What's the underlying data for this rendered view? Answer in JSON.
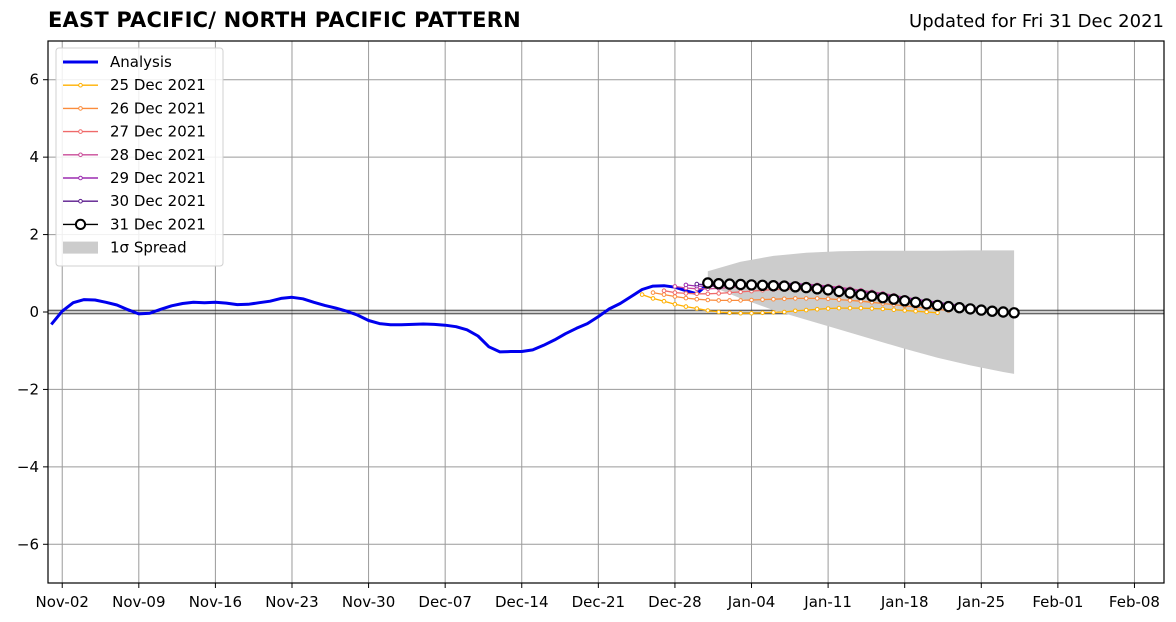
{
  "chart_data": {
    "type": "line",
    "title": "EAST PACIFIC/ NORTH PACIFIC PATTERN",
    "subtitle": "Updated for Fri 31 Dec 2021",
    "xlabel": "",
    "ylabel": "",
    "x_axis": {
      "type": "date",
      "range": [
        "2021-11-01",
        "2022-02-11"
      ],
      "ticks": [
        "2021-11-02",
        "2021-11-09",
        "2021-11-16",
        "2021-11-23",
        "2021-11-30",
        "2021-12-07",
        "2021-12-14",
        "2021-12-21",
        "2021-12-28",
        "2022-01-04",
        "2022-01-11",
        "2022-01-18",
        "2022-01-25",
        "2022-02-01",
        "2022-02-08"
      ],
      "tick_labels": [
        "Nov-02",
        "Nov-09",
        "Nov-16",
        "Nov-23",
        "Nov-30",
        "Dec-07",
        "Dec-14",
        "Dec-21",
        "Dec-28",
        "Jan-04",
        "Jan-11",
        "Jan-18",
        "Jan-25",
        "Feb-01",
        "Feb-08"
      ]
    },
    "y_axis": {
      "range": [
        -7,
        7
      ],
      "ticks": [
        -6,
        -4,
        -2,
        0,
        2,
        4,
        6
      ],
      "tick_labels": [
        "−6",
        "−4",
        "−2",
        "0",
        "2",
        "4",
        "6"
      ]
    },
    "grid": true,
    "legend_position": "top-left",
    "zero_line": true,
    "analysis": {
      "name": "Analysis",
      "color": "#0000ee",
      "points": [
        [
          "2021-11-01",
          -0.32
        ],
        [
          "2021-11-02",
          0.02
        ],
        [
          "2021-11-03",
          0.24
        ],
        [
          "2021-11-04",
          0.32
        ],
        [
          "2021-11-05",
          0.31
        ],
        [
          "2021-11-06",
          0.25
        ],
        [
          "2021-11-07",
          0.18
        ],
        [
          "2021-11-08",
          0.06
        ],
        [
          "2021-11-09",
          -0.05
        ],
        [
          "2021-11-10",
          -0.03
        ],
        [
          "2021-11-11",
          0.07
        ],
        [
          "2021-11-12",
          0.16
        ],
        [
          "2021-11-13",
          0.22
        ],
        [
          "2021-11-14",
          0.25
        ],
        [
          "2021-11-15",
          0.24
        ],
        [
          "2021-11-16",
          0.25
        ],
        [
          "2021-11-17",
          0.23
        ],
        [
          "2021-11-18",
          0.19
        ],
        [
          "2021-11-19",
          0.2
        ],
        [
          "2021-11-20",
          0.24
        ],
        [
          "2021-11-21",
          0.28
        ],
        [
          "2021-11-22",
          0.35
        ],
        [
          "2021-11-23",
          0.38
        ],
        [
          "2021-11-24",
          0.34
        ],
        [
          "2021-11-25",
          0.25
        ],
        [
          "2021-11-26",
          0.17
        ],
        [
          "2021-11-27",
          0.1
        ],
        [
          "2021-11-28",
          0.02
        ],
        [
          "2021-11-29",
          -0.08
        ],
        [
          "2021-11-30",
          -0.22
        ],
        [
          "2021-12-01",
          -0.3
        ],
        [
          "2021-12-02",
          -0.33
        ],
        [
          "2021-12-03",
          -0.33
        ],
        [
          "2021-12-04",
          -0.32
        ],
        [
          "2021-12-05",
          -0.31
        ],
        [
          "2021-12-06",
          -0.32
        ],
        [
          "2021-12-07",
          -0.34
        ],
        [
          "2021-12-08",
          -0.38
        ],
        [
          "2021-12-09",
          -0.46
        ],
        [
          "2021-12-10",
          -0.62
        ],
        [
          "2021-12-11",
          -0.9
        ],
        [
          "2021-12-12",
          -1.03
        ],
        [
          "2021-12-13",
          -1.02
        ],
        [
          "2021-12-14",
          -1.02
        ],
        [
          "2021-12-15",
          -0.98
        ],
        [
          "2021-12-16",
          -0.86
        ],
        [
          "2021-12-17",
          -0.72
        ],
        [
          "2021-12-18",
          -0.56
        ],
        [
          "2021-12-19",
          -0.42
        ],
        [
          "2021-12-20",
          -0.3
        ],
        [
          "2021-12-21",
          -0.12
        ],
        [
          "2021-12-22",
          0.08
        ],
        [
          "2021-12-23",
          0.22
        ],
        [
          "2021-12-24",
          0.4
        ],
        [
          "2021-12-25",
          0.58
        ],
        [
          "2021-12-26",
          0.67
        ],
        [
          "2021-12-27",
          0.68
        ],
        [
          "2021-12-28",
          0.64
        ],
        [
          "2021-12-29",
          0.55
        ],
        [
          "2021-12-30",
          0.47
        ],
        [
          "2021-12-31",
          0.72
        ]
      ]
    },
    "forecasts": [
      {
        "name": "25 Dec 2021",
        "color": "#ffb000",
        "start": "2021-12-25",
        "values": [
          0.45,
          0.35,
          0.28,
          0.2,
          0.14,
          0.09,
          0.04,
          0.0,
          -0.02,
          -0.03,
          -0.03,
          -0.02,
          -0.01,
          0.0,
          0.03,
          0.05,
          0.07,
          0.09,
          0.1,
          0.1,
          0.1,
          0.09,
          0.08,
          0.06,
          0.04,
          0.02,
          0.0,
          -0.02
        ]
      },
      {
        "name": "26 Dec 2021",
        "color": "#fb8c3c",
        "start": "2021-12-26",
        "values": [
          0.5,
          0.45,
          0.4,
          0.36,
          0.33,
          0.31,
          0.3,
          0.3,
          0.3,
          0.31,
          0.32,
          0.33,
          0.34,
          0.35,
          0.35,
          0.35,
          0.34,
          0.32,
          0.3,
          0.28,
          0.25,
          0.22,
          0.19,
          0.16,
          0.13,
          0.1,
          0.07,
          0.04
        ]
      },
      {
        "name": "27 Dec 2021",
        "color": "#ef6a6a",
        "start": "2021-12-27",
        "values": [
          0.55,
          0.5,
          0.48,
          0.47,
          0.47,
          0.48,
          0.5,
          0.52,
          0.54,
          0.56,
          0.58,
          0.58,
          0.58,
          0.57,
          0.55,
          0.53,
          0.5,
          0.47,
          0.44,
          0.41,
          0.37,
          0.33,
          0.29,
          0.25,
          0.21,
          0.17,
          0.13,
          0.09
        ]
      },
      {
        "name": "28 Dec 2021",
        "color": "#c94b98",
        "start": "2021-12-28",
        "values": [
          0.66,
          0.62,
          0.6,
          0.6,
          0.61,
          0.63,
          0.66,
          0.68,
          0.7,
          0.72,
          0.73,
          0.73,
          0.72,
          0.7,
          0.67,
          0.64,
          0.6,
          0.56,
          0.52,
          0.48,
          0.43,
          0.38,
          0.33,
          0.28,
          0.23,
          0.18,
          0.13,
          0.08
        ]
      },
      {
        "name": "29 Dec 2021",
        "color": "#9b2cb0",
        "start": "2021-12-29",
        "values": [
          0.7,
          0.67,
          0.66,
          0.67,
          0.68,
          0.7,
          0.72,
          0.73,
          0.74,
          0.74,
          0.73,
          0.71,
          0.68,
          0.65,
          0.61,
          0.57,
          0.53,
          0.49,
          0.45,
          0.41,
          0.37,
          0.33,
          0.29,
          0.25,
          0.21,
          0.17,
          0.13,
          0.09
        ]
      },
      {
        "name": "30 Dec 2021",
        "color": "#5a1a8c",
        "start": "2021-12-30",
        "values": [
          0.72,
          0.7,
          0.69,
          0.69,
          0.7,
          0.71,
          0.71,
          0.71,
          0.7,
          0.68,
          0.66,
          0.63,
          0.6,
          0.56,
          0.52,
          0.48,
          0.44,
          0.4,
          0.36,
          0.32,
          0.28,
          0.24,
          0.2,
          0.16,
          0.12,
          0.08,
          0.04,
          0.01
        ]
      },
      {
        "name": "31 Dec 2021",
        "color": "#000000",
        "start": "2021-12-31",
        "values": [
          0.75,
          0.73,
          0.72,
          0.71,
          0.7,
          0.69,
          0.68,
          0.67,
          0.65,
          0.63,
          0.6,
          0.57,
          0.53,
          0.49,
          0.45,
          0.41,
          0.37,
          0.33,
          0.29,
          0.25,
          0.21,
          0.17,
          0.14,
          0.11,
          0.08,
          0.05,
          0.02,
          0.0,
          -0.02
        ]
      }
    ],
    "spread": {
      "name": "1σ Spread",
      "color": "#cccccc",
      "x": [
        "2021-12-31",
        "2022-01-03",
        "2022-01-06",
        "2022-01-09",
        "2022-01-12",
        "2022-01-15",
        "2022-01-18",
        "2022-01-21",
        "2022-01-24",
        "2022-01-27",
        "2022-01-28"
      ],
      "upper": [
        1.05,
        1.3,
        1.45,
        1.53,
        1.57,
        1.58,
        1.58,
        1.58,
        1.59,
        1.59,
        1.59
      ],
      "lower": [
        0.7,
        0.35,
        0.05,
        -0.2,
        -0.45,
        -0.7,
        -0.95,
        -1.18,
        -1.38,
        -1.55,
        -1.6
      ]
    }
  }
}
